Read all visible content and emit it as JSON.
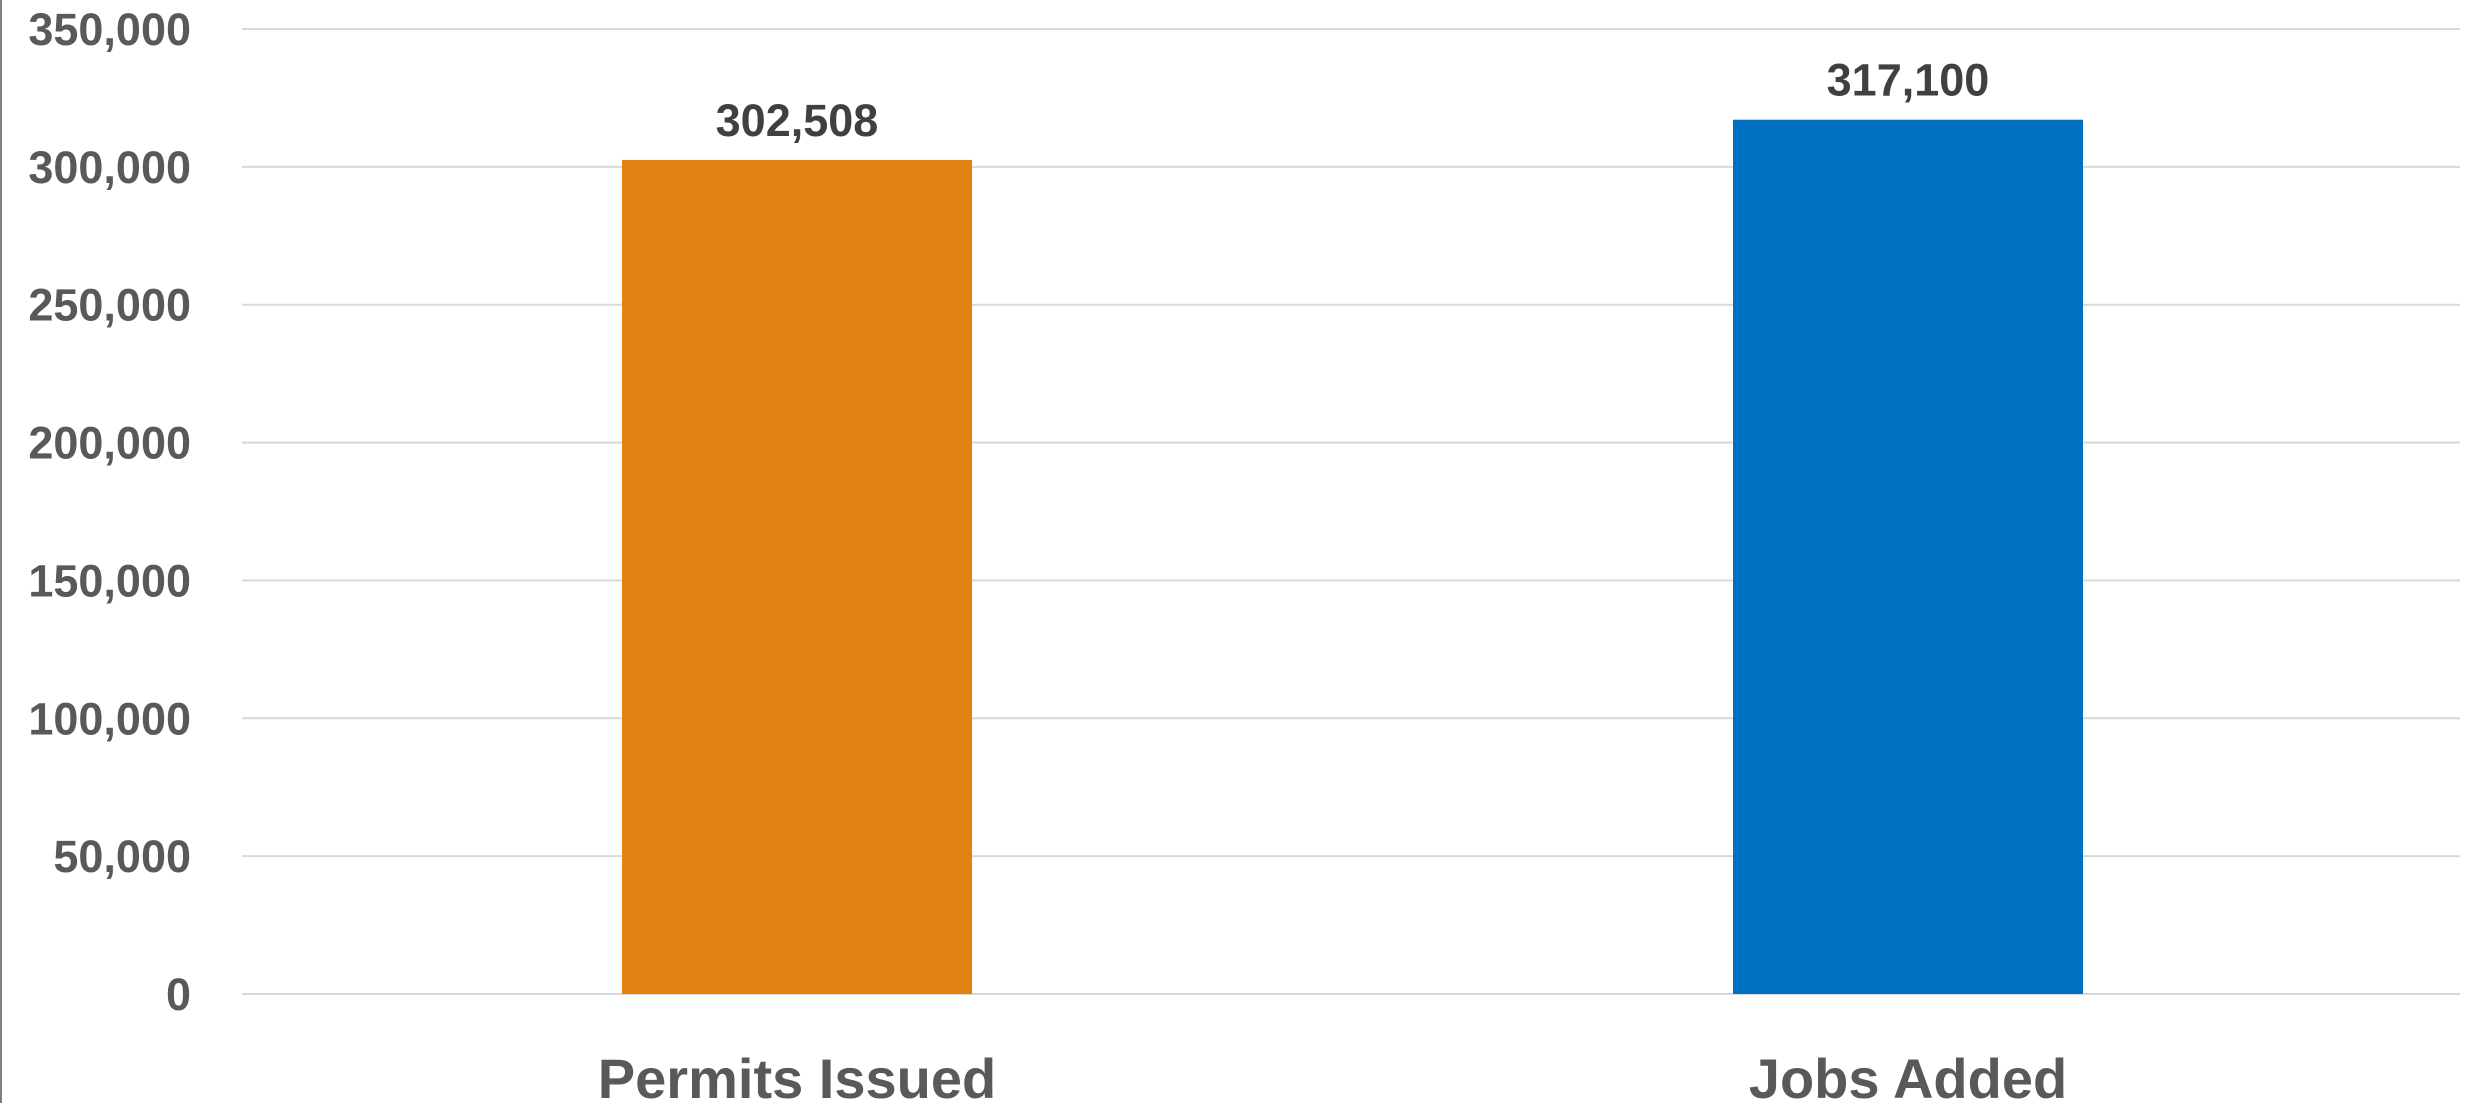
{
  "chart_data": {
    "type": "bar",
    "title": "",
    "xlabel": "",
    "ylabel": "",
    "categories": [
      "Permits Issued",
      "Jobs Added"
    ],
    "values": [
      302508,
      317100
    ],
    "data_labels": [
      "302,508",
      "317,100"
    ],
    "colors": [
      "#E38213",
      "#0070C0"
    ],
    "ylim": [
      0,
      350000
    ],
    "y_ticks": [
      0,
      50000,
      100000,
      150000,
      200000,
      250000,
      300000,
      350000
    ],
    "y_tick_labels": [
      "0",
      "50,000",
      "100,000",
      "150,000",
      "200,000",
      "250,000",
      "300,000",
      "350,000"
    ],
    "grid": true,
    "legend": "none"
  }
}
